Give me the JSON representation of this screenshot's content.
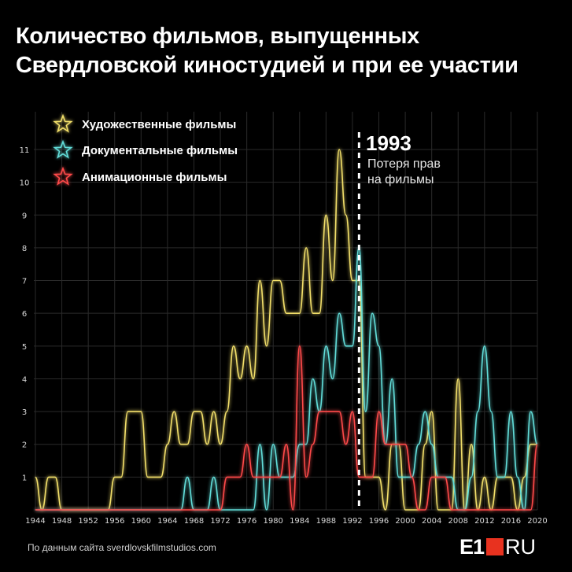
{
  "title_line1": "Количество фильмов, выпущенных",
  "title_line2": "Свердловской киностудией и при ее участии",
  "source": "По данным сайта sverdlovskfilmstudios.com",
  "logo": {
    "e1": "E1",
    "ru": "RU"
  },
  "annotation": {
    "year": "1993",
    "line1": "Потеря прав",
    "line2": "на фильмы"
  },
  "colors": {
    "feature": "#f2df6b",
    "documentary": "#62ddd9",
    "animation": "#ff4a4a",
    "background": "#000000",
    "grid": "#2a2a2a",
    "marker": "#ffffff"
  },
  "chart_data": {
    "type": "line",
    "ylim": [
      0,
      11
    ],
    "xlim": [
      1944,
      2020
    ],
    "grid": true,
    "legend": "top-left",
    "x_ticks": [
      1944,
      1948,
      1952,
      1956,
      1960,
      1964,
      1968,
      1972,
      1976,
      1980,
      1984,
      1988,
      1992,
      1996,
      2000,
      2004,
      2008,
      2012,
      2016,
      2020
    ],
    "y_ticks": [
      1,
      2,
      3,
      4,
      5,
      6,
      7,
      8,
      9,
      10,
      11
    ],
    "marker_year": 1993,
    "series": [
      {
        "name": "Художественные фильмы",
        "color": "#f2df6b",
        "points": [
          [
            1944,
            1
          ],
          [
            1945,
            0
          ],
          [
            1946,
            1
          ],
          [
            1947,
            1
          ],
          [
            1948,
            0
          ],
          [
            1949,
            0
          ],
          [
            1950,
            0
          ],
          [
            1951,
            0
          ],
          [
            1952,
            0
          ],
          [
            1953,
            0
          ],
          [
            1954,
            0
          ],
          [
            1955,
            0
          ],
          [
            1956,
            1
          ],
          [
            1957,
            1
          ],
          [
            1958,
            3
          ],
          [
            1959,
            3
          ],
          [
            1960,
            3
          ],
          [
            1961,
            1
          ],
          [
            1962,
            1
          ],
          [
            1963,
            1
          ],
          [
            1964,
            2
          ],
          [
            1965,
            3
          ],
          [
            1966,
            2
          ],
          [
            1967,
            2
          ],
          [
            1968,
            3
          ],
          [
            1969,
            3
          ],
          [
            1970,
            2
          ],
          [
            1971,
            3
          ],
          [
            1972,
            2
          ],
          [
            1973,
            3
          ],
          [
            1974,
            5
          ],
          [
            1975,
            4
          ],
          [
            1976,
            5
          ],
          [
            1977,
            4
          ],
          [
            1978,
            7
          ],
          [
            1979,
            5
          ],
          [
            1980,
            7
          ],
          [
            1981,
            7
          ],
          [
            1982,
            6
          ],
          [
            1983,
            6
          ],
          [
            1984,
            6
          ],
          [
            1985,
            8
          ],
          [
            1986,
            6
          ],
          [
            1987,
            6
          ],
          [
            1988,
            9
          ],
          [
            1989,
            7
          ],
          [
            1990,
            11
          ],
          [
            1991,
            9
          ],
          [
            1992,
            7
          ],
          [
            1993,
            7
          ],
          [
            1994,
            1
          ],
          [
            1995,
            1
          ],
          [
            1996,
            1
          ],
          [
            1997,
            0
          ],
          [
            1998,
            2
          ],
          [
            1999,
            2
          ],
          [
            2000,
            0
          ],
          [
            2001,
            0
          ],
          [
            2002,
            0
          ],
          [
            2003,
            2
          ],
          [
            2004,
            3
          ],
          [
            2005,
            0
          ],
          [
            2006,
            0
          ],
          [
            2007,
            0
          ],
          [
            2008,
            4
          ],
          [
            2009,
            0
          ],
          [
            2010,
            2
          ],
          [
            2011,
            0
          ],
          [
            2012,
            1
          ],
          [
            2013,
            0
          ],
          [
            2014,
            1
          ],
          [
            2015,
            1
          ],
          [
            2016,
            1
          ],
          [
            2017,
            0
          ],
          [
            2018,
            1
          ],
          [
            2019,
            2
          ],
          [
            2020,
            2
          ]
        ]
      },
      {
        "name": "Документальные фильмы",
        "color": "#62ddd9",
        "points": [
          [
            1944,
            0
          ],
          [
            1945,
            0
          ],
          [
            1946,
            0
          ],
          [
            1947,
            0
          ],
          [
            1948,
            0
          ],
          [
            1949,
            0
          ],
          [
            1950,
            0
          ],
          [
            1951,
            0
          ],
          [
            1952,
            0
          ],
          [
            1953,
            0
          ],
          [
            1954,
            0
          ],
          [
            1955,
            0
          ],
          [
            1956,
            0
          ],
          [
            1957,
            0
          ],
          [
            1958,
            0
          ],
          [
            1959,
            0
          ],
          [
            1960,
            0
          ],
          [
            1961,
            0
          ],
          [
            1962,
            0
          ],
          [
            1963,
            0
          ],
          [
            1964,
            0
          ],
          [
            1965,
            0
          ],
          [
            1966,
            0
          ],
          [
            1967,
            1
          ],
          [
            1968,
            0
          ],
          [
            1969,
            0
          ],
          [
            1970,
            0
          ],
          [
            1971,
            1
          ],
          [
            1972,
            0
          ],
          [
            1973,
            0
          ],
          [
            1974,
            0
          ],
          [
            1975,
            0
          ],
          [
            1976,
            0
          ],
          [
            1977,
            0
          ],
          [
            1978,
            2
          ],
          [
            1979,
            0
          ],
          [
            1980,
            2
          ],
          [
            1981,
            1
          ],
          [
            1982,
            1
          ],
          [
            1983,
            1
          ],
          [
            1984,
            2
          ],
          [
            1985,
            2
          ],
          [
            1986,
            4
          ],
          [
            1987,
            3
          ],
          [
            1988,
            5
          ],
          [
            1989,
            4
          ],
          [
            1990,
            6
          ],
          [
            1991,
            5
          ],
          [
            1992,
            5
          ],
          [
            1993,
            8
          ],
          [
            1994,
            3
          ],
          [
            1995,
            6
          ],
          [
            1996,
            5
          ],
          [
            1997,
            2
          ],
          [
            1998,
            4
          ],
          [
            1999,
            1
          ],
          [
            2000,
            1
          ],
          [
            2001,
            1
          ],
          [
            2002,
            2
          ],
          [
            2003,
            3
          ],
          [
            2004,
            2
          ],
          [
            2005,
            1
          ],
          [
            2006,
            1
          ],
          [
            2007,
            1
          ],
          [
            2008,
            0
          ],
          [
            2009,
            0
          ],
          [
            2010,
            1
          ],
          [
            2011,
            3
          ],
          [
            2012,
            5
          ],
          [
            2013,
            3
          ],
          [
            2014,
            1
          ],
          [
            2015,
            1
          ],
          [
            2016,
            3
          ],
          [
            2017,
            1
          ],
          [
            2018,
            0
          ],
          [
            2019,
            3
          ],
          [
            2020,
            2
          ]
        ]
      },
      {
        "name": "Анимационные фильмы",
        "color": "#ff4a4a",
        "points": [
          [
            1944,
            0
          ],
          [
            1945,
            0
          ],
          [
            1946,
            0
          ],
          [
            1947,
            0
          ],
          [
            1948,
            0
          ],
          [
            1949,
            0
          ],
          [
            1950,
            0
          ],
          [
            1951,
            0
          ],
          [
            1952,
            0
          ],
          [
            1953,
            0
          ],
          [
            1954,
            0
          ],
          [
            1955,
            0
          ],
          [
            1956,
            0
          ],
          [
            1957,
            0
          ],
          [
            1958,
            0
          ],
          [
            1959,
            0
          ],
          [
            1960,
            0
          ],
          [
            1961,
            0
          ],
          [
            1962,
            0
          ],
          [
            1963,
            0
          ],
          [
            1964,
            0
          ],
          [
            1965,
            0
          ],
          [
            1966,
            0
          ],
          [
            1967,
            0
          ],
          [
            1968,
            0
          ],
          [
            1969,
            0
          ],
          [
            1970,
            0
          ],
          [
            1971,
            0
          ],
          [
            1972,
            0
          ],
          [
            1973,
            1
          ],
          [
            1974,
            1
          ],
          [
            1975,
            1
          ],
          [
            1976,
            2
          ],
          [
            1977,
            1
          ],
          [
            1978,
            1
          ],
          [
            1979,
            1
          ],
          [
            1980,
            1
          ],
          [
            1981,
            1
          ],
          [
            1982,
            2
          ],
          [
            1983,
            0
          ],
          [
            1984,
            5
          ],
          [
            1985,
            1
          ],
          [
            1986,
            2
          ],
          [
            1987,
            3
          ],
          [
            1988,
            3
          ],
          [
            1989,
            3
          ],
          [
            1990,
            3
          ],
          [
            1991,
            2
          ],
          [
            1992,
            3
          ],
          [
            1993,
            1
          ],
          [
            1994,
            1
          ],
          [
            1995,
            1
          ],
          [
            1996,
            3
          ],
          [
            1997,
            2
          ],
          [
            1998,
            2
          ],
          [
            1999,
            2
          ],
          [
            2000,
            2
          ],
          [
            2001,
            1
          ],
          [
            2002,
            0
          ],
          [
            2003,
            0
          ],
          [
            2004,
            1
          ],
          [
            2005,
            1
          ],
          [
            2006,
            1
          ],
          [
            2007,
            0
          ],
          [
            2008,
            0
          ],
          [
            2009,
            0
          ],
          [
            2010,
            0
          ],
          [
            2011,
            0
          ],
          [
            2012,
            0
          ],
          [
            2013,
            0
          ],
          [
            2014,
            0
          ],
          [
            2015,
            0
          ],
          [
            2016,
            0
          ],
          [
            2017,
            0
          ],
          [
            2018,
            0
          ],
          [
            2019,
            0
          ],
          [
            2020,
            2
          ]
        ]
      }
    ]
  }
}
